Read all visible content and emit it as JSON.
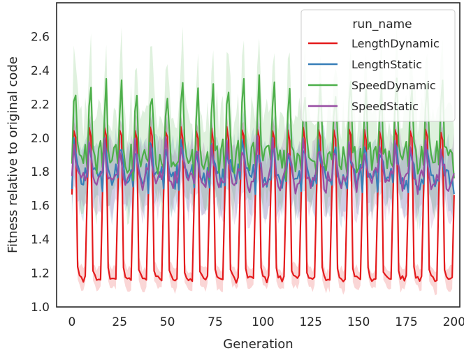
{
  "chart_data": {
    "type": "line",
    "xlabel": "Generation",
    "ylabel": "Fitness relative to original code",
    "xlim": [
      -8,
      203
    ],
    "ylim": [
      1.0,
      2.8
    ],
    "x_ticks": [
      0,
      25,
      50,
      75,
      100,
      125,
      150,
      175,
      200
    ],
    "y_ticks": [
      1.0,
      1.2,
      1.4,
      1.6,
      1.8,
      2.0,
      2.2,
      2.4,
      2.6
    ],
    "grid": false,
    "legend": {
      "title": "run_name",
      "placement": "top-right"
    },
    "period": 8,
    "series": [
      {
        "name": "LengthDynamic",
        "color": "#e41a1c",
        "pattern": [
          1.66,
          2.05,
          2.0,
          1.22,
          1.18,
          1.17,
          1.16,
          1.17
        ],
        "band": 0.06
      },
      {
        "name": "LengthStatic",
        "color": "#377eb8",
        "pattern": [
          1.72,
          1.95,
          1.9,
          1.82,
          1.78,
          1.76,
          1.74,
          1.8
        ],
        "band": 0.18
      },
      {
        "name": "SpeedDynamic",
        "color": "#4daf4a",
        "pattern": [
          1.8,
          2.15,
          2.3,
          1.98,
          1.9,
          1.86,
          1.88,
          1.92
        ],
        "band": 0.25
      },
      {
        "name": "SpeedStatic",
        "color": "#984ea3",
        "pattern": [
          1.78,
          1.96,
          1.88,
          1.8,
          1.74,
          1.72,
          1.76,
          1.78
        ],
        "band": 0.18
      }
    ]
  }
}
